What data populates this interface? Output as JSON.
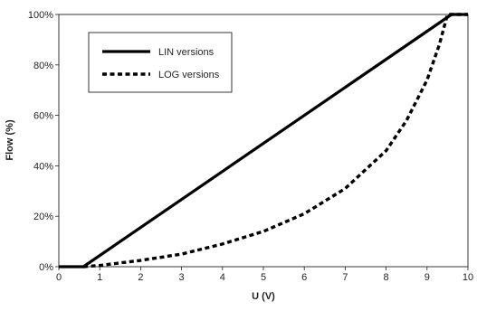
{
  "chart_data": {
    "type": "line",
    "title": "",
    "xlabel": "U (V)",
    "ylabel": "Flow (%)",
    "xlim": [
      0,
      10
    ],
    "ylim": [
      0,
      100
    ],
    "x_ticks": [
      0,
      1,
      2,
      3,
      4,
      5,
      6,
      7,
      8,
      9,
      10
    ],
    "x_tick_labels": [
      "0",
      "1",
      "2",
      "3",
      "4",
      "5",
      "6",
      "7",
      "8",
      "9",
      "10"
    ],
    "y_ticks": [
      0,
      20,
      40,
      60,
      80,
      100
    ],
    "y_tick_labels": [
      "0%",
      "20%",
      "40%",
      "60%",
      "80%",
      "100%"
    ],
    "grid": false,
    "legend_position": "top-left",
    "series": [
      {
        "name": "LIN versions",
        "style": "solid",
        "color": "#000000",
        "points": [
          [
            0,
            0
          ],
          [
            0.6,
            0
          ],
          [
            9.6,
            100
          ],
          [
            10,
            100
          ]
        ]
      },
      {
        "name": "LOG versions",
        "style": "dashed",
        "color": "#000000",
        "points": [
          [
            0.6,
            0
          ],
          [
            1,
            0.5
          ],
          [
            2,
            2.5
          ],
          [
            3,
            5
          ],
          [
            4,
            9
          ],
          [
            5,
            14
          ],
          [
            6,
            21
          ],
          [
            7,
            31
          ],
          [
            8,
            46
          ],
          [
            8.5,
            58
          ],
          [
            9,
            74
          ],
          [
            9.3,
            88
          ],
          [
            9.5,
            100
          ],
          [
            10,
            100
          ]
        ]
      }
    ]
  }
}
